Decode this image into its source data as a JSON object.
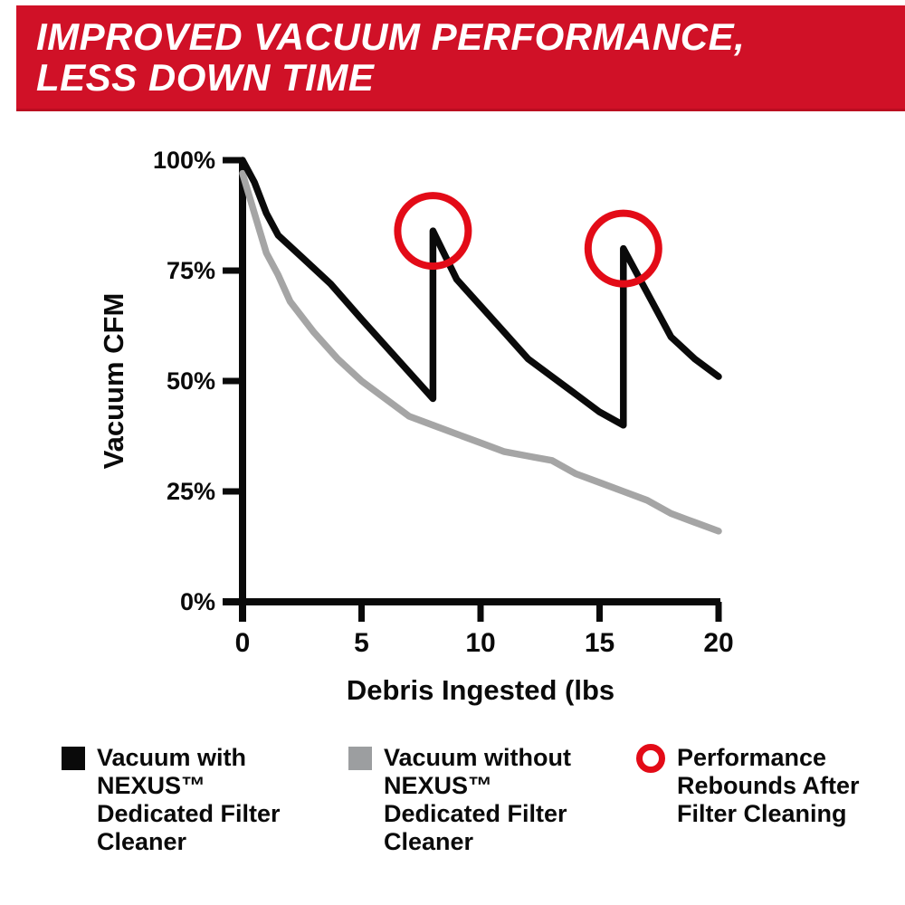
{
  "banner": {
    "line1": "IMPROVED VACUUM PERFORMANCE,",
    "line2": "LESS DOWN TIME",
    "bg_color": "#D01127",
    "text_color": "#FFFFFF"
  },
  "chart_data": {
    "type": "line",
    "title": "",
    "xlabel": "Debris Ingested (lbs",
    "ylabel": "Vacuum CFM",
    "xlim": [
      0,
      20
    ],
    "ylim": [
      0,
      100
    ],
    "x_ticks": [
      0,
      5,
      10,
      15,
      20
    ],
    "y_ticks": [
      0,
      25,
      50,
      75,
      100
    ],
    "y_tick_labels": [
      "0%",
      "25%",
      "50%",
      "75%",
      "100%"
    ],
    "grid": false,
    "legend_position": "bottom",
    "axis_color": "#0a0a0a",
    "series": [
      {
        "name": "Vacuum with NEXUS™ Dedicated Filter Cleaner",
        "color": "#0a0a0a",
        "points": [
          [
            0,
            100
          ],
          [
            0.5,
            95
          ],
          [
            1,
            88
          ],
          [
            1.5,
            83
          ],
          [
            2.5,
            78
          ],
          [
            3.7,
            72
          ],
          [
            5,
            64
          ],
          [
            6,
            58
          ],
          [
            7,
            52
          ],
          [
            8,
            46
          ],
          [
            8,
            84
          ],
          [
            9,
            73
          ],
          [
            10,
            67
          ],
          [
            11,
            61
          ],
          [
            12,
            55
          ],
          [
            13,
            51
          ],
          [
            14,
            47
          ],
          [
            15,
            43
          ],
          [
            16,
            40
          ],
          [
            16,
            80
          ],
          [
            17,
            70
          ],
          [
            18,
            60
          ],
          [
            19,
            55
          ],
          [
            20,
            51
          ]
        ]
      },
      {
        "name": "Vacuum without NEXUS™ Dedicated Filter Cleaner",
        "color": "#a5a5a5",
        "points": [
          [
            0,
            97
          ],
          [
            0.5,
            88
          ],
          [
            1,
            79
          ],
          [
            1.5,
            74
          ],
          [
            2,
            68
          ],
          [
            3,
            61
          ],
          [
            4,
            55
          ],
          [
            5,
            50
          ],
          [
            6,
            46
          ],
          [
            7,
            42
          ],
          [
            8,
            40
          ],
          [
            9,
            38
          ],
          [
            10,
            36
          ],
          [
            11,
            34
          ],
          [
            12,
            33
          ],
          [
            13,
            32
          ],
          [
            14,
            29
          ],
          [
            15,
            27
          ],
          [
            16,
            25
          ],
          [
            17,
            23
          ],
          [
            18,
            20
          ],
          [
            19,
            18
          ],
          [
            20,
            16
          ]
        ]
      }
    ],
    "annotations": {
      "label": "Performance Rebounds After Filter Cleaning",
      "color": "#e30b17",
      "points": [
        [
          8,
          84
        ],
        [
          16,
          80
        ]
      ]
    }
  },
  "legend": {
    "items": [
      {
        "swatch": "square",
        "color": "#0a0a0a",
        "lines": [
          "Vacuum with",
          "NEXUS™",
          "Dedicated Filter",
          "Cleaner"
        ]
      },
      {
        "swatch": "square",
        "color": "#9c9ea0",
        "lines": [
          "Vacuum without",
          "NEXUS™",
          "Dedicated Filter",
          "Cleaner"
        ]
      },
      {
        "swatch": "ring",
        "color": "#e30b17",
        "lines": [
          "Performance",
          "Rebounds After",
          "Filter Cleaning"
        ]
      }
    ]
  }
}
